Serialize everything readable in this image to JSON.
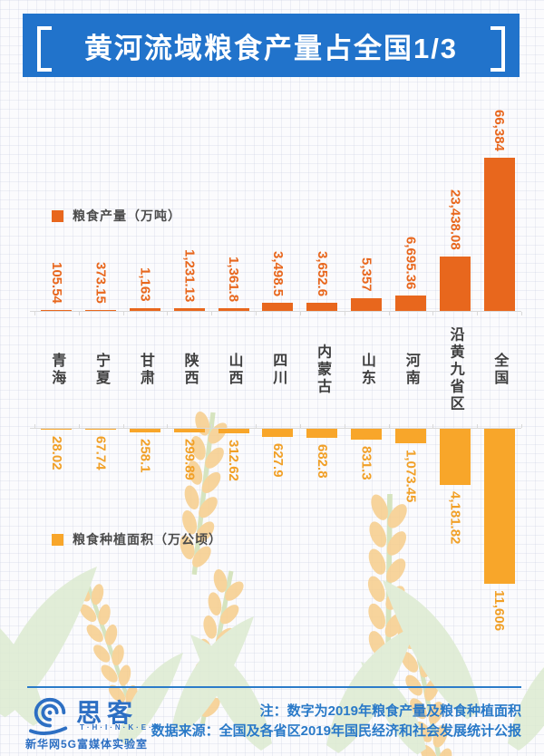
{
  "title": "黄河流域粮食产量占全国1/3",
  "colors": {
    "banner_blue": "#2173cb",
    "production_orange": "#e8671d",
    "area_yellow": "#f8a62a",
    "area_label_yellow": "#f1a027",
    "note_blue": "#2979c8",
    "logo_blue": "#2d6fc3",
    "axis_gray": "#d9d9d9"
  },
  "chart_data": {
    "type": "bar",
    "orientation": "mirrored-vertical",
    "categories": [
      "青海",
      "宁夏",
      "甘肃",
      "陕西",
      "山西",
      "四川",
      "内蒙古",
      "山东",
      "河南",
      "沿黄九省区",
      "全国"
    ],
    "series": [
      {
        "name": "粮食产量（万吨）",
        "direction": "up",
        "color": "#e8671d",
        "label_color": "#e8671d",
        "values": [
          105.54,
          373.15,
          1163,
          1231.13,
          1361.8,
          3498.5,
          3652.6,
          5357,
          6695.36,
          23438.08,
          66384
        ],
        "labels": [
          "105.54",
          "373.15",
          "1,163",
          "1,231.13",
          "1,361.8",
          "3,498.5",
          "3,652.6",
          "5,357",
          "6,695.36",
          "23,438.08",
          "66,384"
        ],
        "max": 66384
      },
      {
        "name": "粮食种植面积（万公顷）",
        "direction": "down",
        "color": "#f8a62a",
        "label_color": "#f1a027",
        "values": [
          28.02,
          67.74,
          258.1,
          299.89,
          312.62,
          627.9,
          682.8,
          831.3,
          1073.45,
          4181.82,
          11606
        ],
        "labels": [
          "28.02",
          "67.74",
          "258.1",
          "299.89",
          "312.62",
          "627.9",
          "682.8",
          "831.3",
          "1,073.45",
          "4,181.82",
          "11,606"
        ],
        "max": 11606
      }
    ],
    "legend_position": "left-inside",
    "grid": "graph-paper-background",
    "value_labels_rotated_90deg": true
  },
  "footer": {
    "note_line1": "注：数字为2019年粮食产量及粮食种植面积",
    "note_line2": "数据来源：全国及各省区2019年国民经济和社会发展统计公报",
    "logo": {
      "brand": "思客",
      "sub": "T·H·I·N·K·E·R",
      "org": "新华网5G富媒体实验室"
    }
  }
}
